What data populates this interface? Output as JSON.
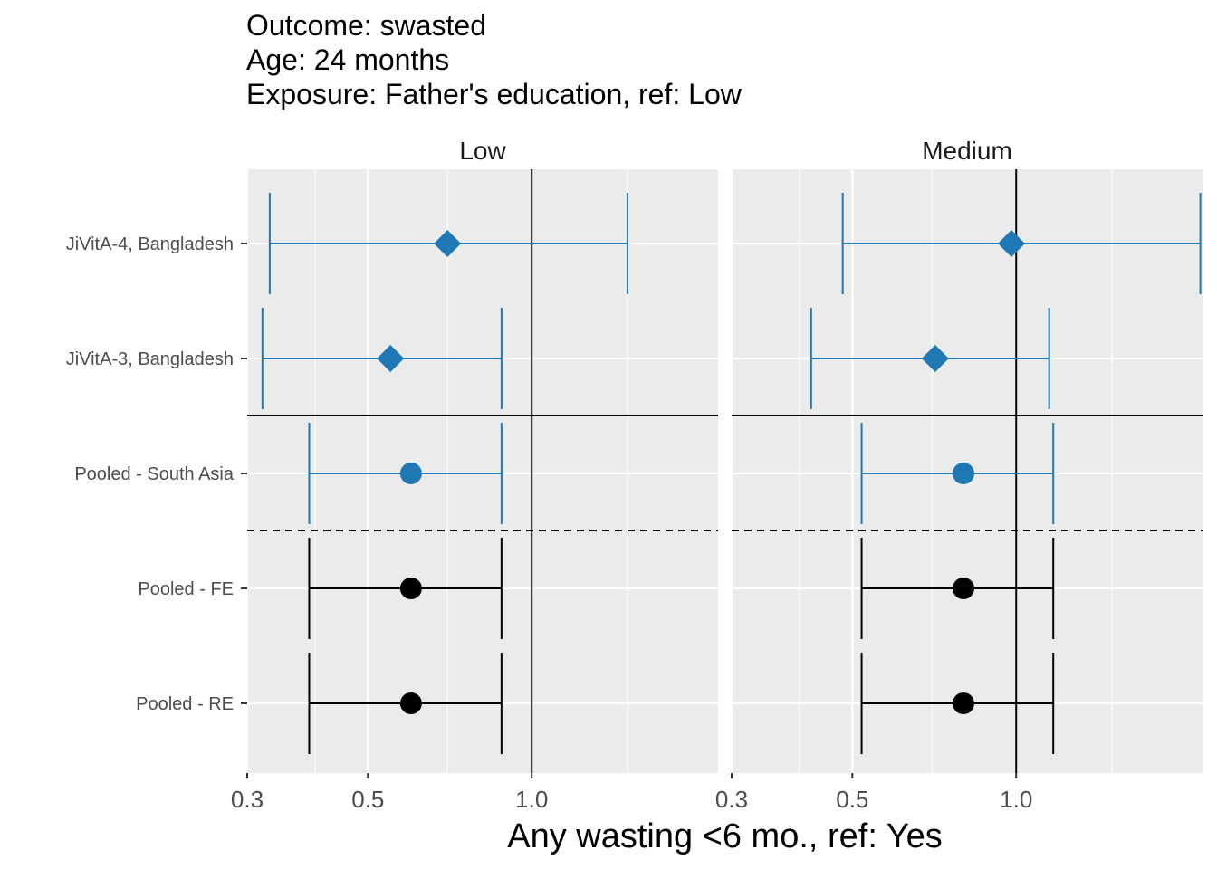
{
  "title_lines": [
    "Outcome: swasted",
    "Age: 24 months",
    "Exposure: Father's education, ref: Low"
  ],
  "chart_data": {
    "type": "forest",
    "xlabel": "Any wasting  <6 mo., ref: Yes",
    "ylabel": "",
    "x_scale": "log",
    "xlim": [
      0.3,
      2.2
    ],
    "x_ticks": [
      0.3,
      0.5,
      1.0
    ],
    "x_tick_labels": [
      "0.3",
      "0.5",
      "1.0"
    ],
    "reference_line": 1.0,
    "rows": [
      "JiVitA-4, Bangladesh",
      "JiVitA-3, Bangladesh",
      "Pooled - South Asia",
      "Pooled - FE",
      "Pooled - RE"
    ],
    "panels": [
      {
        "label": "Low",
        "estimates": [
          {
            "row": "JiVitA-4, Bangladesh",
            "est": 0.7,
            "lower": 0.33,
            "upper": 1.5,
            "shape": "diamond",
            "color": "#1f78b4"
          },
          {
            "row": "JiVitA-3, Bangladesh",
            "est": 0.55,
            "lower": 0.32,
            "upper": 0.88,
            "shape": "diamond",
            "color": "#1f78b4"
          },
          {
            "row": "Pooled - South Asia",
            "est": 0.6,
            "lower": 0.39,
            "upper": 0.88,
            "shape": "circle",
            "color": "#1f78b4"
          },
          {
            "row": "Pooled - FE",
            "est": 0.6,
            "lower": 0.39,
            "upper": 0.88,
            "shape": "circle",
            "color": "#000000"
          },
          {
            "row": "Pooled - RE",
            "est": 0.6,
            "lower": 0.39,
            "upper": 0.88,
            "shape": "circle",
            "color": "#000000"
          }
        ]
      },
      {
        "label": "Medium",
        "estimates": [
          {
            "row": "JiVitA-4, Bangladesh",
            "est": 0.98,
            "lower": 0.48,
            "upper": 2.18,
            "shape": "diamond",
            "color": "#1f78b4"
          },
          {
            "row": "JiVitA-3, Bangladesh",
            "est": 0.71,
            "lower": 0.42,
            "upper": 1.15,
            "shape": "diamond",
            "color": "#1f78b4"
          },
          {
            "row": "Pooled - South Asia",
            "est": 0.8,
            "lower": 0.52,
            "upper": 1.17,
            "shape": "circle",
            "color": "#1f78b4"
          },
          {
            "row": "Pooled - FE",
            "est": 0.8,
            "lower": 0.52,
            "upper": 1.17,
            "shape": "circle",
            "color": "#000000"
          },
          {
            "row": "Pooled - RE",
            "est": 0.8,
            "lower": 0.52,
            "upper": 1.17,
            "shape": "circle",
            "color": "#000000"
          }
        ]
      }
    ],
    "separators": [
      {
        "after_row": "JiVitA-3, Bangladesh",
        "style": "solid"
      },
      {
        "after_row": "Pooled - South Asia",
        "style": "dashed"
      }
    ],
    "colors": {
      "panel_background": "#ebebeb",
      "grid": "#ffffff",
      "study": "#1f78b4",
      "pooled": "#000000"
    },
    "grid": true
  }
}
